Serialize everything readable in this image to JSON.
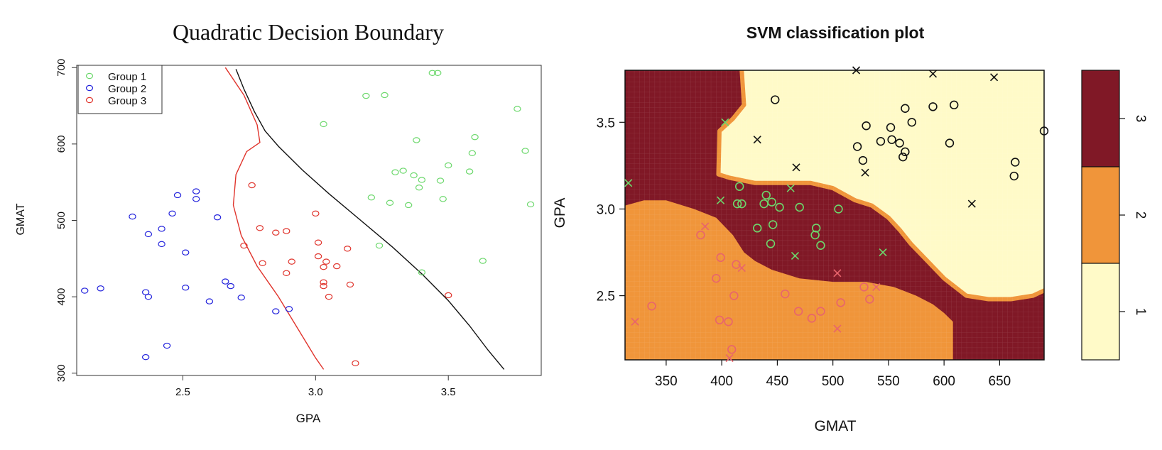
{
  "chart_data": [
    {
      "type": "scatter",
      "title": "Quadratic Decision Boundary",
      "xlabel": "GPA",
      "ylabel": "GMAT",
      "xlim": [
        2.1,
        3.85
      ],
      "ylim": [
        300,
        700
      ],
      "xticks": [
        "2.5",
        "3.0",
        "3.5"
      ],
      "yticks": [
        "300",
        "400",
        "500",
        "600",
        "700"
      ],
      "legend": {
        "position": "top-left"
      },
      "colors": {
        "Group 1": "#6cd86c",
        "Group 2": "#2323dc",
        "Group 3": "#e0342c",
        "boundary_red": "#e0342c",
        "boundary_black": "#111111"
      },
      "series": [
        {
          "name": "Group 1",
          "points": [
            [
              3.44,
              693
            ],
            [
              3.46,
              693
            ],
            [
              3.19,
              663
            ],
            [
              3.26,
              664
            ],
            [
              3.76,
              646
            ],
            [
              3.03,
              626
            ],
            [
              3.6,
              609
            ],
            [
              3.38,
              605
            ],
            [
              3.59,
              588
            ],
            [
              3.79,
              591
            ],
            [
              3.5,
              572
            ],
            [
              3.33,
              565
            ],
            [
              3.3,
              563
            ],
            [
              3.58,
              564
            ],
            [
              3.37,
              559
            ],
            [
              3.4,
              553
            ],
            [
              3.47,
              552
            ],
            [
              3.39,
              543
            ],
            [
              3.21,
              530
            ],
            [
              3.48,
              528
            ],
            [
              3.28,
              523
            ],
            [
              3.35,
              520
            ],
            [
              3.81,
              521
            ],
            [
              3.24,
              467
            ],
            [
              3.63,
              447
            ],
            [
              3.4,
              432
            ]
          ]
        },
        {
          "name": "Group 2",
          "points": [
            [
              2.55,
              538
            ],
            [
              2.48,
              533
            ],
            [
              2.55,
              528
            ],
            [
              2.46,
              509
            ],
            [
              2.31,
              505
            ],
            [
              2.63,
              504
            ],
            [
              2.42,
              489
            ],
            [
              2.37,
              482
            ],
            [
              2.42,
              469
            ],
            [
              2.51,
              458
            ],
            [
              2.66,
              420
            ],
            [
              2.68,
              414
            ],
            [
              2.51,
              412
            ],
            [
              2.13,
              408
            ],
            [
              2.19,
              411
            ],
            [
              2.36,
              406
            ],
            [
              2.37,
              400
            ],
            [
              2.72,
              399
            ],
            [
              2.6,
              394
            ],
            [
              2.9,
              384
            ],
            [
              2.85,
              381
            ],
            [
              2.44,
              336
            ],
            [
              2.36,
              321
            ]
          ]
        },
        {
          "name": "Group 3",
          "points": [
            [
              2.76,
              546
            ],
            [
              3.0,
              509
            ],
            [
              2.79,
              490
            ],
            [
              2.89,
              486
            ],
            [
              2.85,
              484
            ],
            [
              3.01,
              471
            ],
            [
              2.73,
              467
            ],
            [
              3.12,
              463
            ],
            [
              3.01,
              453
            ],
            [
              2.91,
              446
            ],
            [
              3.04,
              446
            ],
            [
              2.8,
              444
            ],
            [
              3.08,
              440
            ],
            [
              3.03,
              439
            ],
            [
              3.03,
              419
            ],
            [
              3.13,
              416
            ],
            [
              3.03,
              414
            ],
            [
              2.89,
              431
            ],
            [
              3.05,
              400
            ],
            [
              3.5,
              402
            ],
            [
              3.15,
              313
            ]
          ]
        }
      ],
      "boundaries": [
        {
          "name": "red",
          "points": [
            [
              2.66,
              700
            ],
            [
              2.73,
              664
            ],
            [
              2.78,
              625
            ],
            [
              2.79,
              602
            ],
            [
              2.74,
              590
            ],
            [
              2.7,
              560
            ],
            [
              2.69,
              520
            ],
            [
              2.72,
              480
            ],
            [
              2.78,
              440
            ],
            [
              2.86,
              400
            ],
            [
              2.93,
              360
            ],
            [
              3.0,
              320
            ],
            [
              3.03,
              305
            ]
          ]
        },
        {
          "name": "black",
          "points": [
            [
              2.7,
              698
            ],
            [
              2.73,
              672
            ],
            [
              2.77,
              642
            ],
            [
              2.81,
              617
            ],
            [
              2.86,
              597
            ],
            [
              2.95,
              566
            ],
            [
              3.05,
              535
            ],
            [
              3.17,
              500
            ],
            [
              3.29,
              465
            ],
            [
              3.4,
              430
            ],
            [
              3.5,
              395
            ],
            [
              3.58,
              362
            ],
            [
              3.65,
              330
            ],
            [
              3.71,
              305
            ]
          ]
        }
      ]
    },
    {
      "type": "heatmap",
      "title": "SVM classification plot",
      "xlabel": "GMAT",
      "ylabel": "GPA",
      "xlim": [
        313,
        690
      ],
      "ylim": [
        2.13,
        3.8
      ],
      "xticks": [
        "350",
        "400",
        "450",
        "500",
        "550",
        "600",
        "650"
      ],
      "yticks": [
        "2.5",
        "3.0",
        "3.5"
      ],
      "legend": {
        "position": "right",
        "title": "",
        "levels": [
          "1",
          "2",
          "3"
        ]
      },
      "colors": {
        "1": "#fffac8",
        "2": "#f0953a",
        "3": "#801826",
        "edge": "#f0953a",
        "points_class1": "#111111",
        "points_class3": "#6cd86c",
        "points_class2": "#e8646c"
      },
      "regions": {
        "class_3_top_left_boundary_x_at_top": 418,
        "class_1_boundary": [
          [
            418,
            3.8
          ],
          [
            420,
            3.6
          ],
          [
            410,
            3.52
          ],
          [
            398,
            3.45
          ],
          [
            397,
            3.2
          ],
          [
            407,
            3.18
          ],
          [
            430,
            3.15
          ],
          [
            460,
            3.15
          ],
          [
            480,
            3.15
          ],
          [
            500,
            3.12
          ],
          [
            520,
            3.05
          ],
          [
            535,
            3.02
          ],
          [
            550,
            2.95
          ],
          [
            560,
            2.88
          ],
          [
            570,
            2.8
          ],
          [
            585,
            2.7
          ],
          [
            600,
            2.6
          ],
          [
            620,
            2.5
          ],
          [
            640,
            2.48
          ],
          [
            660,
            2.48
          ],
          [
            680,
            2.5
          ],
          [
            690,
            2.53
          ]
        ],
        "class_2_boundary": [
          [
            313,
            3.02
          ],
          [
            330,
            3.05
          ],
          [
            350,
            3.05
          ],
          [
            375,
            3.0
          ],
          [
            395,
            2.95
          ],
          [
            410,
            2.85
          ],
          [
            420,
            2.75
          ],
          [
            430,
            2.7
          ],
          [
            445,
            2.65
          ],
          [
            470,
            2.6
          ],
          [
            500,
            2.58
          ],
          [
            530,
            2.58
          ],
          [
            555,
            2.55
          ],
          [
            575,
            2.5
          ],
          [
            590,
            2.45
          ],
          [
            600,
            2.4
          ],
          [
            608,
            2.35
          ],
          [
            608,
            2.13
          ]
        ]
      },
      "series": [
        {
          "name": "1",
          "marker": "o",
          "points": [
            [
              448,
              3.63
            ],
            [
              530,
              3.48
            ],
            [
              552,
              3.47
            ],
            [
              571,
              3.5
            ],
            [
              565,
              3.58
            ],
            [
              590,
              3.59
            ],
            [
              609,
              3.6
            ],
            [
              543,
              3.39
            ],
            [
              553,
              3.4
            ],
            [
              560,
              3.38
            ],
            [
              522,
              3.36
            ],
            [
              527,
              3.28
            ],
            [
              565,
              3.33
            ],
            [
              563,
              3.3
            ],
            [
              605,
              3.38
            ],
            [
              664,
              3.27
            ],
            [
              663,
              3.19
            ],
            [
              690,
              3.45
            ]
          ]
        },
        {
          "name": "1",
          "marker": "x",
          "points": [
            [
              521,
              3.8
            ],
            [
              590,
              3.78
            ],
            [
              645,
              3.76
            ],
            [
              432,
              3.4
            ],
            [
              467,
              3.24
            ],
            [
              529,
              3.21
            ],
            [
              625,
              3.03
            ]
          ]
        },
        {
          "name": "3",
          "marker": "o",
          "points": [
            [
              416,
              3.13
            ],
            [
              414,
              3.03
            ],
            [
              418,
              3.03
            ],
            [
              438,
              3.03
            ],
            [
              440,
              3.08
            ],
            [
              445,
              3.04
            ],
            [
              452,
              3.01
            ],
            [
              470,
              3.01
            ],
            [
              505,
              3.0
            ],
            [
              432,
              2.89
            ],
            [
              446,
              2.91
            ],
            [
              485,
              2.89
            ],
            [
              484,
              2.85
            ],
            [
              489,
              2.79
            ],
            [
              444,
              2.8
            ]
          ]
        },
        {
          "name": "3",
          "marker": "x",
          "points": [
            [
              316,
              3.15
            ],
            [
              403,
              3.5
            ],
            [
              399,
              3.05
            ],
            [
              462,
              3.12
            ],
            [
              466,
              2.73
            ],
            [
              545,
              2.75
            ]
          ]
        },
        {
          "name": "2",
          "marker": "o",
          "points": [
            [
              381,
              2.85
            ],
            [
              399,
              2.72
            ],
            [
              395,
              2.6
            ],
            [
              413,
              2.68
            ],
            [
              411,
              2.5
            ],
            [
              398,
              2.36
            ],
            [
              406,
              2.35
            ],
            [
              409,
              2.19
            ],
            [
              337,
              2.44
            ],
            [
              457,
              2.51
            ],
            [
              469,
              2.41
            ],
            [
              481,
              2.37
            ],
            [
              489,
              2.41
            ],
            [
              507,
              2.46
            ],
            [
              528,
              2.55
            ],
            [
              533,
              2.48
            ]
          ]
        },
        {
          "name": "2",
          "marker": "x",
          "points": [
            [
              385,
              2.9
            ],
            [
              418,
              2.66
            ],
            [
              322,
              2.35
            ],
            [
              504,
              2.63
            ],
            [
              539,
              2.55
            ],
            [
              504,
              2.31
            ],
            [
              407,
              2.14
            ]
          ]
        }
      ]
    }
  ]
}
